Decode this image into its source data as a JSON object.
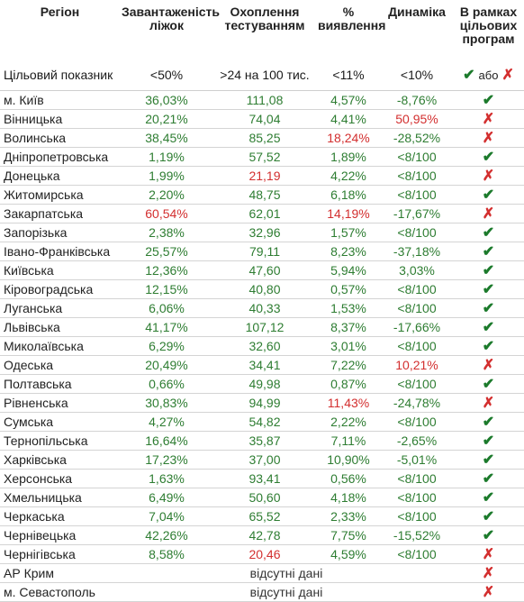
{
  "headers": {
    "region": "Регіон",
    "load": "Завантаженість ліжок",
    "testing": "Охоплення тестуванням",
    "detection": "% виявлення",
    "dynamics": "Динаміка",
    "programs": "В рамках цільових програм"
  },
  "target": {
    "label": "Цільовий показник",
    "load": "<50%",
    "testing": ">24 на 100 тис.",
    "detection": "<11%",
    "dynamics": "<10%",
    "or": "або"
  },
  "colors": {
    "good": "#2e7d32",
    "bad": "#d32f2f"
  },
  "rows": [
    {
      "region": "м. Київ",
      "load": "36,03%",
      "load_c": "g",
      "testing": "111,08",
      "testing_c": "g",
      "detection": "4,57%",
      "detection_c": "g",
      "dynamics": "-8,76%",
      "dynamics_c": "g",
      "ok": true
    },
    {
      "region": "Вінницька",
      "load": "20,21%",
      "load_c": "g",
      "testing": "74,04",
      "testing_c": "g",
      "detection": "4,41%",
      "detection_c": "g",
      "dynamics": "50,95%",
      "dynamics_c": "r",
      "ok": false
    },
    {
      "region": "Волинська",
      "load": "38,45%",
      "load_c": "g",
      "testing": "85,25",
      "testing_c": "g",
      "detection": "18,24%",
      "detection_c": "r",
      "dynamics": "-28,52%",
      "dynamics_c": "g",
      "ok": false
    },
    {
      "region": "Дніпропетровська",
      "load": "1,19%",
      "load_c": "g",
      "testing": "57,52",
      "testing_c": "g",
      "detection": "1,89%",
      "detection_c": "g",
      "dynamics": "<8/100",
      "dynamics_c": "g",
      "ok": true
    },
    {
      "region": "Донецька",
      "load": "1,99%",
      "load_c": "g",
      "testing": "21,19",
      "testing_c": "r",
      "detection": "4,22%",
      "detection_c": "g",
      "dynamics": "<8/100",
      "dynamics_c": "g",
      "ok": false
    },
    {
      "region": "Житомирська",
      "load": "2,20%",
      "load_c": "g",
      "testing": "48,75",
      "testing_c": "g",
      "detection": "6,18%",
      "detection_c": "g",
      "dynamics": "<8/100",
      "dynamics_c": "g",
      "ok": true
    },
    {
      "region": "Закарпатська",
      "load": "60,54%",
      "load_c": "r",
      "testing": "62,01",
      "testing_c": "g",
      "detection": "14,19%",
      "detection_c": "r",
      "dynamics": "-17,67%",
      "dynamics_c": "g",
      "ok": false
    },
    {
      "region": "Запорізька",
      "load": "2,38%",
      "load_c": "g",
      "testing": "32,96",
      "testing_c": "g",
      "detection": "1,57%",
      "detection_c": "g",
      "dynamics": "<8/100",
      "dynamics_c": "g",
      "ok": true
    },
    {
      "region": "Івано-Франківська",
      "load": "25,57%",
      "load_c": "g",
      "testing": "79,11",
      "testing_c": "g",
      "detection": "8,23%",
      "detection_c": "g",
      "dynamics": "-37,18%",
      "dynamics_c": "g",
      "ok": true
    },
    {
      "region": "Київська",
      "load": "12,36%",
      "load_c": "g",
      "testing": "47,60",
      "testing_c": "g",
      "detection": "5,94%",
      "detection_c": "g",
      "dynamics": "3,03%",
      "dynamics_c": "g",
      "ok": true
    },
    {
      "region": "Кіровоградська",
      "load": "12,15%",
      "load_c": "g",
      "testing": "40,80",
      "testing_c": "g",
      "detection": "0,57%",
      "detection_c": "g",
      "dynamics": "<8/100",
      "dynamics_c": "g",
      "ok": true
    },
    {
      "region": "Луганська",
      "load": "6,06%",
      "load_c": "g",
      "testing": "40,33",
      "testing_c": "g",
      "detection": "1,53%",
      "detection_c": "g",
      "dynamics": "<8/100",
      "dynamics_c": "g",
      "ok": true
    },
    {
      "region": "Львівська",
      "load": "41,17%",
      "load_c": "g",
      "testing": "107,12",
      "testing_c": "g",
      "detection": "8,37%",
      "detection_c": "g",
      "dynamics": "-17,66%",
      "dynamics_c": "g",
      "ok": true
    },
    {
      "region": "Миколаївська",
      "load": "6,29%",
      "load_c": "g",
      "testing": "32,60",
      "testing_c": "g",
      "detection": "3,01%",
      "detection_c": "g",
      "dynamics": "<8/100",
      "dynamics_c": "g",
      "ok": true
    },
    {
      "region": "Одеська",
      "load": "20,49%",
      "load_c": "g",
      "testing": "34,41",
      "testing_c": "g",
      "detection": "7,22%",
      "detection_c": "g",
      "dynamics": "10,21%",
      "dynamics_c": "r",
      "ok": false
    },
    {
      "region": "Полтавська",
      "load": "0,66%",
      "load_c": "g",
      "testing": "49,98",
      "testing_c": "g",
      "detection": "0,87%",
      "detection_c": "g",
      "dynamics": "<8/100",
      "dynamics_c": "g",
      "ok": true
    },
    {
      "region": "Рівненська",
      "load": "30,83%",
      "load_c": "g",
      "testing": "94,99",
      "testing_c": "g",
      "detection": "11,43%",
      "detection_c": "r",
      "dynamics": "-24,78%",
      "dynamics_c": "g",
      "ok": false
    },
    {
      "region": "Сумська",
      "load": "4,27%",
      "load_c": "g",
      "testing": "54,82",
      "testing_c": "g",
      "detection": "2,22%",
      "detection_c": "g",
      "dynamics": "<8/100",
      "dynamics_c": "g",
      "ok": true
    },
    {
      "region": "Тернопільська",
      "load": "16,64%",
      "load_c": "g",
      "testing": "35,87",
      "testing_c": "g",
      "detection": "7,11%",
      "detection_c": "g",
      "dynamics": "-2,65%",
      "dynamics_c": "g",
      "ok": true
    },
    {
      "region": "Харківська",
      "load": "17,23%",
      "load_c": "g",
      "testing": "37,00",
      "testing_c": "g",
      "detection": "10,90%",
      "detection_c": "g",
      "dynamics": "-5,01%",
      "dynamics_c": "g",
      "ok": true
    },
    {
      "region": "Херсонська",
      "load": "1,63%",
      "load_c": "g",
      "testing": "93,41",
      "testing_c": "g",
      "detection": "0,56%",
      "detection_c": "g",
      "dynamics": "<8/100",
      "dynamics_c": "g",
      "ok": true
    },
    {
      "region": "Хмельницька",
      "load": "6,49%",
      "load_c": "g",
      "testing": "50,60",
      "testing_c": "g",
      "detection": "4,18%",
      "detection_c": "g",
      "dynamics": "<8/100",
      "dynamics_c": "g",
      "ok": true
    },
    {
      "region": "Черкаська",
      "load": "7,04%",
      "load_c": "g",
      "testing": "65,52",
      "testing_c": "g",
      "detection": "2,33%",
      "detection_c": "g",
      "dynamics": "<8/100",
      "dynamics_c": "g",
      "ok": true
    },
    {
      "region": "Чернівецька",
      "load": "42,26%",
      "load_c": "g",
      "testing": "42,78",
      "testing_c": "g",
      "detection": "7,75%",
      "detection_c": "g",
      "dynamics": "-15,52%",
      "dynamics_c": "g",
      "ok": true
    },
    {
      "region": "Чернігівська",
      "load": "8,58%",
      "load_c": "g",
      "testing": "20,46",
      "testing_c": "r",
      "detection": "4,59%",
      "detection_c": "g",
      "dynamics": "<8/100",
      "dynamics_c": "g",
      "ok": false
    }
  ],
  "no_data_rows": [
    {
      "region": "АР Крим",
      "note": "відсутні дані",
      "ok": false
    },
    {
      "region": "м. Севастополь",
      "note": "відсутні дані",
      "ok": false
    }
  ]
}
